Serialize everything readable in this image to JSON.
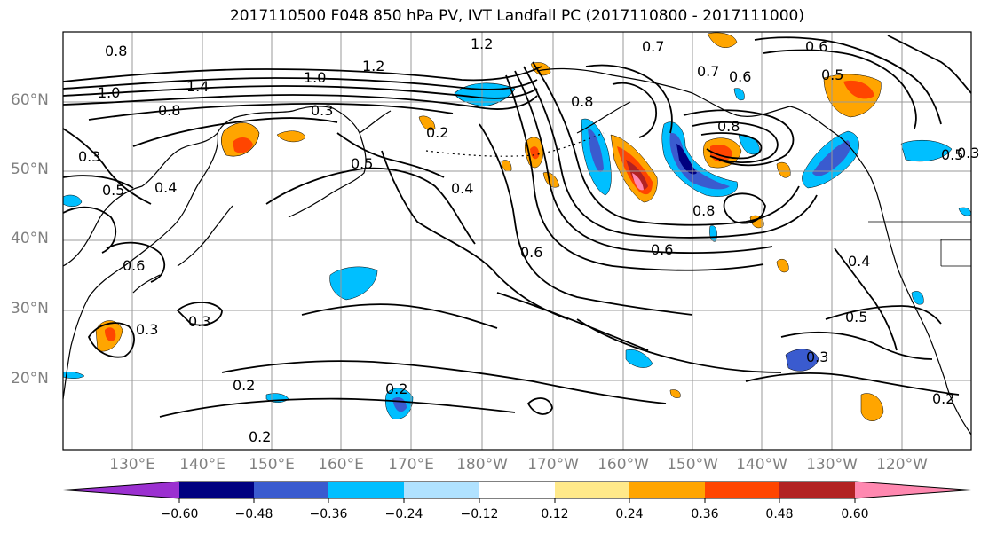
{
  "title": "2017110500 F048 850 hPa PV, IVT Landfall PC (2017110800 - 2017111000)",
  "lat_labels": [
    "60°N",
    "50°N",
    "40°N",
    "30°N",
    "20°N"
  ],
  "lon_labels": [
    "130°E",
    "140°E",
    "150°E",
    "160°E",
    "170°E",
    "180°W",
    "170°W",
    "160°W",
    "150°W",
    "140°W",
    "130°W",
    "120°W"
  ],
  "colorbar": {
    "colors": [
      "#9b30d0",
      "#000080",
      "#3a5bcf",
      "#00bfff",
      "#b0e2ff",
      "#ffffff",
      "#ffe98a",
      "#ffa500",
      "#ff4500",
      "#b22222",
      "#ff88b0"
    ],
    "tick_labels": [
      "−0.60",
      "−0.48",
      "−0.36",
      "−0.24",
      "−0.12",
      "0.12",
      "0.24",
      "0.36",
      "0.48",
      "0.60"
    ]
  },
  "contour_labels": [
    "0.8",
    "1.4",
    "1.2",
    "1.2",
    "0.7",
    "0.6",
    "0.5",
    "1.0",
    "1.0",
    "0.8",
    "0.3",
    "0.2",
    "0.5",
    "0.3",
    "0.5",
    "0.4",
    "0.4",
    "0.8",
    "0.7",
    "0.6",
    "0.8",
    "0.8",
    "0.6",
    "0.6",
    "0.6",
    "0.5",
    "0.3",
    "0.3",
    "0.2",
    "0.2",
    "0.2",
    "0.3",
    "0.2",
    "0.4",
    "0.5",
    "0.3"
  ]
}
